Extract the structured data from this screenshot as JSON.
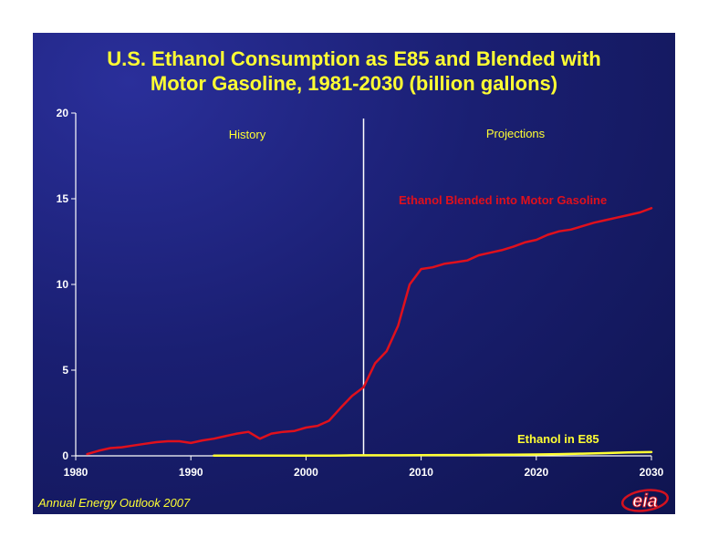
{
  "colors": {
    "background": "#1a1f72",
    "title": "#ffff33",
    "axis": "#ffffff",
    "blended_series": "#e0101c",
    "e85_series": "#ffff33",
    "logo_red": "#d4121f"
  },
  "footer": {
    "source": "Annual Energy Outlook 2007"
  },
  "logo": {
    "text": "eia",
    "icon": "eia-logo-icon"
  },
  "chart_data": {
    "type": "line",
    "title_lines": [
      "U.S. Ethanol Consumption as E85 and Blended with",
      "Motor Gasoline, 1981-2030 (billion gallons)"
    ],
    "xlabel": "",
    "ylabel": "",
    "xlim": [
      1980,
      2030
    ],
    "ylim": [
      0,
      20
    ],
    "x_ticks": [
      1980,
      1990,
      2000,
      2010,
      2020,
      2030
    ],
    "y_ticks": [
      0,
      5,
      10,
      15,
      20
    ],
    "grid": false,
    "divider": {
      "x": 2005
    },
    "region_labels": {
      "history": "History",
      "projections": "Projections"
    },
    "series": [
      {
        "name": "Ethanol Blended into Motor Gasoline",
        "x": [
          1981,
          1982,
          1983,
          1984,
          1985,
          1986,
          1987,
          1988,
          1989,
          1990,
          1991,
          1992,
          1993,
          1994,
          1995,
          1996,
          1997,
          1998,
          1999,
          2000,
          2001,
          2002,
          2003,
          2004,
          2005,
          2006,
          2007,
          2008,
          2009,
          2010,
          2011,
          2012,
          2013,
          2014,
          2015,
          2016,
          2017,
          2018,
          2019,
          2020,
          2021,
          2022,
          2023,
          2024,
          2025,
          2026,
          2027,
          2028,
          2029,
          2030
        ],
        "values": [
          0.1,
          0.3,
          0.45,
          0.5,
          0.6,
          0.7,
          0.8,
          0.85,
          0.85,
          0.75,
          0.9,
          1.0,
          1.15,
          1.3,
          1.4,
          1.0,
          1.3,
          1.4,
          1.45,
          1.65,
          1.75,
          2.05,
          2.8,
          3.5,
          4.0,
          5.4,
          6.1,
          7.6,
          10.0,
          10.9,
          11.0,
          11.2,
          11.3,
          11.4,
          11.7,
          11.85,
          12.0,
          12.2,
          12.45,
          12.6,
          12.9,
          13.1,
          13.2,
          13.4,
          13.6,
          13.75,
          13.9,
          14.05,
          14.2,
          14.45
        ]
      },
      {
        "name": "Ethanol in E85",
        "x": [
          1992,
          1994,
          1996,
          1998,
          2000,
          2002,
          2003,
          2004,
          2005,
          2006,
          2008,
          2010,
          2012,
          2014,
          2016,
          2018,
          2020,
          2022,
          2024,
          2026,
          2028,
          2030
        ],
        "values": [
          0.01,
          0.01,
          0.01,
          0.01,
          0.01,
          0.01,
          0.02,
          0.03,
          0.03,
          0.03,
          0.03,
          0.04,
          0.05,
          0.05,
          0.06,
          0.07,
          0.08,
          0.1,
          0.13,
          0.16,
          0.2,
          0.22
        ]
      }
    ]
  }
}
